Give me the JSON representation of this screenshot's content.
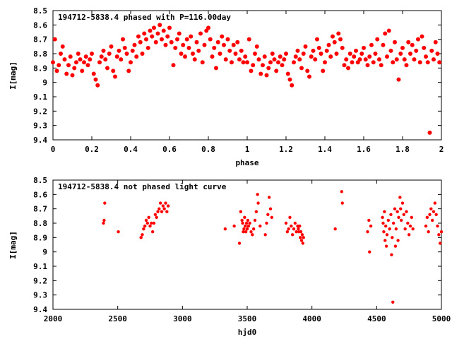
{
  "chart_data": [
    {
      "type": "scatter",
      "title": "194712-5838.4 phased with P=116.00day",
      "xlabel": "phase",
      "ylabel": "I[mag]",
      "xlim": [
        0,
        2
      ],
      "ylim": [
        8.5,
        9.4
      ],
      "y_inverted": true,
      "grid": false,
      "color": "#ff0000",
      "x_ticks": [
        "0",
        "0.2",
        "0.4",
        "0.6",
        "0.8",
        "1",
        "1.2",
        "1.4",
        "1.6",
        "1.8",
        "2"
      ],
      "y_ticks": [
        "8.5",
        "8.6",
        "8.7",
        "8.8",
        "8.9",
        "9",
        "9.1",
        "9.2",
        "9.3",
        "9.4"
      ],
      "points": [
        [
          0.0,
          8.86
        ],
        [
          0.01,
          8.7
        ],
        [
          0.02,
          8.92
        ],
        [
          0.03,
          8.88
        ],
        [
          0.04,
          8.8
        ],
        [
          0.05,
          8.75
        ],
        [
          0.06,
          8.84
        ],
        [
          0.07,
          8.94
        ],
        [
          0.08,
          8.88
        ],
        [
          0.09,
          8.82
        ],
        [
          0.1,
          8.95
        ],
        [
          0.11,
          8.9
        ],
        [
          0.12,
          8.86
        ],
        [
          0.13,
          8.8
        ],
        [
          0.14,
          8.84
        ],
        [
          0.15,
          8.92
        ],
        [
          0.16,
          8.86
        ],
        [
          0.17,
          8.82
        ],
        [
          0.18,
          8.88
        ],
        [
          0.19,
          8.84
        ],
        [
          0.2,
          8.8
        ],
        [
          0.21,
          8.94
        ],
        [
          0.22,
          8.98
        ],
        [
          0.23,
          9.02
        ],
        [
          0.24,
          8.86
        ],
        [
          0.25,
          8.82
        ],
        [
          0.26,
          8.78
        ],
        [
          0.27,
          8.84
        ],
        [
          0.28,
          8.9
        ],
        [
          0.29,
          8.8
        ],
        [
          0.3,
          8.75
        ],
        [
          0.31,
          8.92
        ],
        [
          0.32,
          8.96
        ],
        [
          0.33,
          8.82
        ],
        [
          0.34,
          8.78
        ],
        [
          0.35,
          8.84
        ],
        [
          0.36,
          8.7
        ],
        [
          0.37,
          8.76
        ],
        [
          0.38,
          8.8
        ],
        [
          0.39,
          8.92
        ],
        [
          0.4,
          8.86
        ],
        [
          0.41,
          8.78
        ],
        [
          0.42,
          8.74
        ],
        [
          0.43,
          8.82
        ],
        [
          0.44,
          8.68
        ],
        [
          0.45,
          8.72
        ],
        [
          0.46,
          8.8
        ],
        [
          0.47,
          8.66
        ],
        [
          0.48,
          8.7
        ],
        [
          0.49,
          8.76
        ],
        [
          0.5,
          8.64
        ],
        [
          0.51,
          8.68
        ],
        [
          0.52,
          8.62
        ],
        [
          0.53,
          8.72
        ],
        [
          0.54,
          8.66
        ],
        [
          0.55,
          8.6
        ],
        [
          0.56,
          8.7
        ],
        [
          0.57,
          8.64
        ],
        [
          0.58,
          8.74
        ],
        [
          0.59,
          8.68
        ],
        [
          0.6,
          8.62
        ],
        [
          0.61,
          8.72
        ],
        [
          0.62,
          8.88
        ],
        [
          0.63,
          8.76
        ],
        [
          0.64,
          8.7
        ],
        [
          0.65,
          8.66
        ],
        [
          0.66,
          8.8
        ],
        [
          0.67,
          8.74
        ],
        [
          0.68,
          8.82
        ],
        [
          0.69,
          8.7
        ],
        [
          0.7,
          8.76
        ],
        [
          0.71,
          8.68
        ],
        [
          0.72,
          8.8
        ],
        [
          0.73,
          8.84
        ],
        [
          0.74,
          8.72
        ],
        [
          0.75,
          8.78
        ],
        [
          0.76,
          8.66
        ],
        [
          0.77,
          8.86
        ],
        [
          0.78,
          8.74
        ],
        [
          0.79,
          8.64
        ],
        [
          0.8,
          8.62
        ],
        [
          0.81,
          8.7
        ],
        [
          0.82,
          8.82
        ],
        [
          0.83,
          8.76
        ],
        [
          0.84,
          8.9
        ],
        [
          0.85,
          8.72
        ],
        [
          0.86,
          8.8
        ],
        [
          0.87,
          8.68
        ],
        [
          0.88,
          8.74
        ],
        [
          0.89,
          8.84
        ],
        [
          0.9,
          8.7
        ],
        [
          0.91,
          8.78
        ],
        [
          0.92,
          8.86
        ],
        [
          0.93,
          8.74
        ],
        [
          0.94,
          8.8
        ],
        [
          0.95,
          8.72
        ],
        [
          0.96,
          8.84
        ],
        [
          0.97,
          8.78
        ],
        [
          0.98,
          8.86
        ],
        [
          0.99,
          8.82
        ],
        [
          1.0,
          8.86
        ],
        [
          1.01,
          8.7
        ],
        [
          1.02,
          8.92
        ],
        [
          1.03,
          8.88
        ],
        [
          1.04,
          8.8
        ],
        [
          1.05,
          8.75
        ],
        [
          1.06,
          8.84
        ],
        [
          1.07,
          8.94
        ],
        [
          1.08,
          8.88
        ],
        [
          1.09,
          8.82
        ],
        [
          1.1,
          8.95
        ],
        [
          1.11,
          8.9
        ],
        [
          1.12,
          8.86
        ],
        [
          1.13,
          8.8
        ],
        [
          1.14,
          8.84
        ],
        [
          1.15,
          8.92
        ],
        [
          1.16,
          8.86
        ],
        [
          1.17,
          8.82
        ],
        [
          1.18,
          8.88
        ],
        [
          1.19,
          8.84
        ],
        [
          1.2,
          8.8
        ],
        [
          1.21,
          8.94
        ],
        [
          1.22,
          8.98
        ],
        [
          1.23,
          9.02
        ],
        [
          1.24,
          8.86
        ],
        [
          1.25,
          8.82
        ],
        [
          1.26,
          8.78
        ],
        [
          1.27,
          8.84
        ],
        [
          1.28,
          8.9
        ],
        [
          1.29,
          8.8
        ],
        [
          1.3,
          8.75
        ],
        [
          1.31,
          8.92
        ],
        [
          1.32,
          8.96
        ],
        [
          1.33,
          8.82
        ],
        [
          1.34,
          8.78
        ],
        [
          1.35,
          8.84
        ],
        [
          1.36,
          8.7
        ],
        [
          1.37,
          8.76
        ],
        [
          1.38,
          8.8
        ],
        [
          1.39,
          8.92
        ],
        [
          1.4,
          8.86
        ],
        [
          1.41,
          8.78
        ],
        [
          1.42,
          8.74
        ],
        [
          1.43,
          8.82
        ],
        [
          1.44,
          8.68
        ],
        [
          1.45,
          8.72
        ],
        [
          1.46,
          8.8
        ],
        [
          1.47,
          8.66
        ],
        [
          1.48,
          8.7
        ],
        [
          1.49,
          8.76
        ],
        [
          1.5,
          8.88
        ],
        [
          1.51,
          8.84
        ],
        [
          1.52,
          8.9
        ],
        [
          1.53,
          8.8
        ],
        [
          1.54,
          8.86
        ],
        [
          1.55,
          8.82
        ],
        [
          1.56,
          8.78
        ],
        [
          1.57,
          8.86
        ],
        [
          1.58,
          8.84
        ],
        [
          1.59,
          8.8
        ],
        [
          1.6,
          8.76
        ],
        [
          1.61,
          8.84
        ],
        [
          1.62,
          8.88
        ],
        [
          1.63,
          8.82
        ],
        [
          1.64,
          8.74
        ],
        [
          1.65,
          8.86
        ],
        [
          1.66,
          8.8
        ],
        [
          1.67,
          8.7
        ],
        [
          1.68,
          8.84
        ],
        [
          1.69,
          8.88
        ],
        [
          1.7,
          8.74
        ],
        [
          1.71,
          8.66
        ],
        [
          1.72,
          8.82
        ],
        [
          1.73,
          8.64
        ],
        [
          1.74,
          8.78
        ],
        [
          1.75,
          8.86
        ],
        [
          1.76,
          8.72
        ],
        [
          1.77,
          8.84
        ],
        [
          1.78,
          8.98
        ],
        [
          1.79,
          8.8
        ],
        [
          1.8,
          8.76
        ],
        [
          1.81,
          8.84
        ],
        [
          1.82,
          8.88
        ],
        [
          1.83,
          8.72
        ],
        [
          1.84,
          8.8
        ],
        [
          1.85,
          8.74
        ],
        [
          1.86,
          8.84
        ],
        [
          1.87,
          8.78
        ],
        [
          1.88,
          8.7
        ],
        [
          1.89,
          8.86
        ],
        [
          1.9,
          8.68
        ],
        [
          1.91,
          8.76
        ],
        [
          1.92,
          8.82
        ],
        [
          1.93,
          8.86
        ],
        [
          1.94,
          9.35
        ],
        [
          1.95,
          8.78
        ],
        [
          1.96,
          8.84
        ],
        [
          1.97,
          8.72
        ],
        [
          1.98,
          8.8
        ],
        [
          1.99,
          8.86
        ]
      ]
    },
    {
      "type": "scatter",
      "title": "194712-5838.4 not phased light curve",
      "xlabel": "hjd0",
      "ylabel": "I[mag]",
      "xlim": [
        2000,
        5000
      ],
      "ylim": [
        8.5,
        9.4
      ],
      "y_inverted": true,
      "grid": false,
      "color": "#ff0000",
      "x_ticks": [
        "2000",
        "2500",
        "3000",
        "3500",
        "4000",
        "4500",
        "5000"
      ],
      "y_ticks": [
        "8.5",
        "8.6",
        "8.7",
        "8.8",
        "8.9",
        "9",
        "9.1",
        "9.2",
        "9.3",
        "9.4"
      ],
      "points": [
        [
          2390,
          8.8
        ],
        [
          2395,
          8.78
        ],
        [
          2400,
          8.66
        ],
        [
          2505,
          8.86
        ],
        [
          2680,
          8.9
        ],
        [
          2690,
          8.88
        ],
        [
          2700,
          8.84
        ],
        [
          2710,
          8.82
        ],
        [
          2720,
          8.78
        ],
        [
          2730,
          8.8
        ],
        [
          2740,
          8.76
        ],
        [
          2750,
          8.82
        ],
        [
          2760,
          8.8
        ],
        [
          2770,
          8.86
        ],
        [
          2780,
          8.8
        ],
        [
          2790,
          8.74
        ],
        [
          2800,
          8.76
        ],
        [
          2810,
          8.72
        ],
        [
          2820,
          8.7
        ],
        [
          2830,
          8.66
        ],
        [
          2840,
          8.72
        ],
        [
          2850,
          8.68
        ],
        [
          2860,
          8.7
        ],
        [
          2870,
          8.66
        ],
        [
          2880,
          8.72
        ],
        [
          2890,
          8.68
        ],
        [
          3330,
          8.84
        ],
        [
          3400,
          8.82
        ],
        [
          3440,
          8.94
        ],
        [
          3450,
          8.72
        ],
        [
          3460,
          8.78
        ],
        [
          3465,
          8.8
        ],
        [
          3470,
          8.86
        ],
        [
          3475,
          8.84
        ],
        [
          3480,
          8.76
        ],
        [
          3485,
          8.82
        ],
        [
          3490,
          8.86
        ],
        [
          3495,
          8.8
        ],
        [
          3500,
          8.84
        ],
        [
          3505,
          8.78
        ],
        [
          3510,
          8.82
        ],
        [
          3520,
          8.8
        ],
        [
          3530,
          8.86
        ],
        [
          3540,
          8.88
        ],
        [
          3550,
          8.84
        ],
        [
          3560,
          8.78
        ],
        [
          3570,
          8.72
        ],
        [
          3580,
          8.6
        ],
        [
          3585,
          8.66
        ],
        [
          3600,
          8.82
        ],
        [
          3640,
          8.88
        ],
        [
          3650,
          8.8
        ],
        [
          3660,
          8.74
        ],
        [
          3670,
          8.62
        ],
        [
          3680,
          8.7
        ],
        [
          3690,
          8.76
        ],
        [
          3800,
          8.8
        ],
        [
          3810,
          8.86
        ],
        [
          3820,
          8.84
        ],
        [
          3830,
          8.76
        ],
        [
          3840,
          8.82
        ],
        [
          3850,
          8.88
        ],
        [
          3860,
          8.84
        ],
        [
          3870,
          8.8
        ],
        [
          3880,
          8.86
        ],
        [
          3890,
          8.82
        ],
        [
          3895,
          8.84
        ],
        [
          3900,
          8.86
        ],
        [
          3905,
          8.82
        ],
        [
          3910,
          8.9
        ],
        [
          3915,
          8.86
        ],
        [
          3920,
          8.92
        ],
        [
          3925,
          8.88
        ],
        [
          3930,
          8.94
        ],
        [
          3935,
          8.9
        ],
        [
          4180,
          8.84
        ],
        [
          4230,
          8.58
        ],
        [
          4235,
          8.66
        ],
        [
          4430,
          8.86
        ],
        [
          4440,
          8.78
        ],
        [
          4445,
          9.0
        ],
        [
          4455,
          8.82
        ],
        [
          4545,
          8.76
        ],
        [
          4550,
          8.8
        ],
        [
          4555,
          8.86
        ],
        [
          4560,
          8.72
        ],
        [
          4565,
          8.92
        ],
        [
          4570,
          8.82
        ],
        [
          4575,
          8.96
        ],
        [
          4580,
          8.88
        ],
        [
          4590,
          8.78
        ],
        [
          4600,
          8.84
        ],
        [
          4610,
          8.74
        ],
        [
          4615,
          9.02
        ],
        [
          4620,
          8.9
        ],
        [
          4625,
          9.35
        ],
        [
          4630,
          8.8
        ],
        [
          4640,
          8.7
        ],
        [
          4645,
          8.96
        ],
        [
          4650,
          8.84
        ],
        [
          4660,
          8.72
        ],
        [
          4665,
          8.92
        ],
        [
          4670,
          8.76
        ],
        [
          4680,
          8.62
        ],
        [
          4685,
          8.7
        ],
        [
          4690,
          8.78
        ],
        [
          4700,
          8.66
        ],
        [
          4710,
          8.74
        ],
        [
          4720,
          8.84
        ],
        [
          4730,
          8.72
        ],
        [
          4740,
          8.8
        ],
        [
          4750,
          8.88
        ],
        [
          4760,
          8.82
        ],
        [
          4770,
          8.76
        ],
        [
          4780,
          8.84
        ],
        [
          4880,
          8.82
        ],
        [
          4890,
          8.76
        ],
        [
          4900,
          8.86
        ],
        [
          4910,
          8.74
        ],
        [
          4920,
          8.7
        ],
        [
          4930,
          8.78
        ],
        [
          4940,
          8.72
        ],
        [
          4950,
          8.66
        ],
        [
          4960,
          8.74
        ],
        [
          4970,
          8.82
        ],
        [
          4980,
          8.88
        ],
        [
          4990,
          8.94
        ],
        [
          5000,
          8.86
        ]
      ]
    }
  ]
}
